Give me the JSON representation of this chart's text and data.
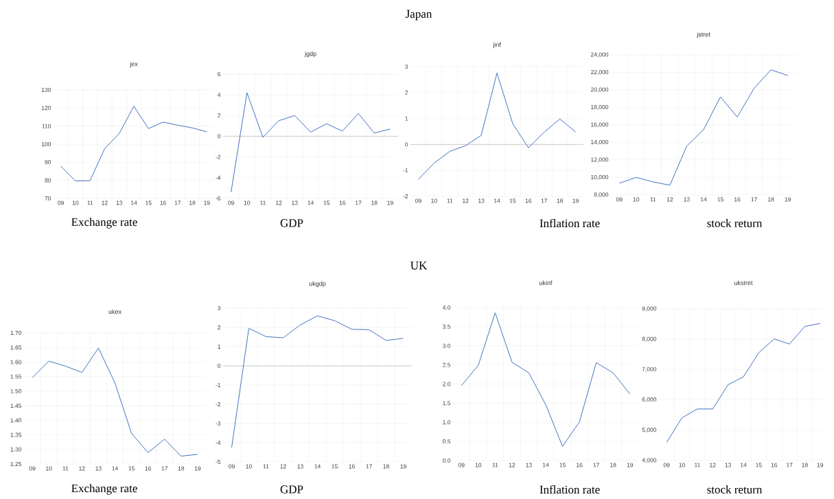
{
  "chart_data": [
    {
      "type": "line",
      "title": "jex",
      "xlabel": "Exchange rate",
      "annotations": [
        "Japan"
      ],
      "categories": [
        "09",
        "10",
        "11",
        "12",
        "13",
        "14",
        "15",
        "16",
        "17",
        "18",
        "19"
      ],
      "color": "#4472c4",
      "grid": true,
      "values": [
        87.8,
        79.6,
        79.8,
        97.5,
        105.9,
        121.0,
        108.6,
        112.2,
        110.5,
        109.0,
        106.8
      ],
      "ylim": [
        70,
        130
      ],
      "yticks": [
        70,
        80,
        90,
        100,
        110,
        120,
        130
      ]
    },
    {
      "type": "line",
      "title": "jgdp",
      "xlabel": "GDP",
      "categories": [
        "09",
        "10",
        "11",
        "12",
        "13",
        "14",
        "15",
        "16",
        "17",
        "18",
        "19"
      ],
      "color": "#4472c4",
      "grid": true,
      "values": [
        -5.4,
        4.2,
        -0.1,
        1.5,
        2.0,
        0.4,
        1.2,
        0.5,
        2.2,
        0.3,
        0.7
      ],
      "ylim": [
        -6,
        6
      ],
      "yticks": [
        -6,
        -4,
        -2,
        0,
        2,
        4,
        6
      ],
      "ref_lines": [
        {
          "axis": "y",
          "value": 0,
          "color": "#bfbfbf"
        }
      ]
    },
    {
      "type": "line",
      "title": "jinf",
      "xlabel": "Inflation rate",
      "categories": [
        "09",
        "10",
        "11",
        "12",
        "13",
        "14",
        "15",
        "16",
        "17",
        "18",
        "19"
      ],
      "color": "#4472c4",
      "grid": true,
      "values": [
        -1.35,
        -0.72,
        -0.27,
        -0.05,
        0.35,
        2.75,
        0.8,
        -0.13,
        0.47,
        0.98,
        0.48
      ],
      "ylim": [
        -2,
        3
      ],
      "yticks": [
        -2,
        -1,
        0,
        1,
        2,
        3
      ],
      "ref_lines": [
        {
          "axis": "y",
          "value": 0,
          "color": "#bfbfbf"
        }
      ]
    },
    {
      "type": "line",
      "title": "jstret",
      "xlabel": "stock return",
      "categories": [
        "09",
        "10",
        "11",
        "12",
        "13",
        "14",
        "15",
        "16",
        "17",
        "18",
        "19"
      ],
      "color": "#4472c4",
      "grid": true,
      "values": [
        9340,
        10000,
        9490,
        9110,
        13580,
        15460,
        19200,
        16900,
        20200,
        22300,
        21650
      ],
      "ylim": [
        8000,
        24000
      ],
      "yticks": [
        {
          "value": 8000,
          "label": "8,000"
        },
        {
          "value": 10000,
          "label": "10,000"
        },
        {
          "value": 12000,
          "label": "12,000"
        },
        {
          "value": 14000,
          "label": "14,000"
        },
        {
          "value": 16000,
          "label": "16,000"
        },
        {
          "value": 18000,
          "label": "18,000"
        },
        {
          "value": 20000,
          "label": "20,000"
        },
        {
          "value": 22000,
          "label": "22,000"
        },
        {
          "value": 24000,
          "label": "24,000"
        }
      ]
    },
    {
      "type": "line",
      "title": "ukex",
      "xlabel": "Exchange rate",
      "annotations": [
        "UK"
      ],
      "categories": [
        "09",
        "10",
        "11",
        "12",
        "13",
        "14",
        "15",
        "16",
        "17",
        "18",
        "19"
      ],
      "color": "#4472c4",
      "grid": true,
      "values": [
        1.546,
        1.603,
        1.586,
        1.564,
        1.648,
        1.528,
        1.355,
        1.289,
        1.335,
        1.277,
        1.283
      ],
      "ylim": [
        1.25,
        1.7
      ],
      "yticks": [
        {
          "value": 1.25,
          "label": "1.25"
        },
        {
          "value": 1.3,
          "label": "1.30"
        },
        {
          "value": 1.35,
          "label": "1.35"
        },
        {
          "value": 1.4,
          "label": "1.40"
        },
        {
          "value": 1.45,
          "label": "1.45"
        },
        {
          "value": 1.5,
          "label": "1.50"
        },
        {
          "value": 1.55,
          "label": "1.55"
        },
        {
          "value": 1.6,
          "label": "1.60"
        },
        {
          "value": 1.65,
          "label": "1.65"
        },
        {
          "value": 1.7,
          "label": "1.70"
        }
      ]
    },
    {
      "type": "line",
      "title": "ukgdp",
      "xlabel": "GDP",
      "categories": [
        "09",
        "10",
        "11",
        "12",
        "13",
        "14",
        "15",
        "16",
        "17",
        "18",
        "19"
      ],
      "color": "#4472c4",
      "grid": true,
      "values": [
        -4.25,
        1.95,
        1.52,
        1.46,
        2.13,
        2.6,
        2.35,
        1.9,
        1.88,
        1.32,
        1.43
      ],
      "ylim": [
        -5,
        3
      ],
      "yticks": [
        -5,
        -4,
        -3,
        -2,
        -1,
        0,
        1,
        2,
        3
      ],
      "ref_lines": [
        {
          "axis": "y",
          "value": 0,
          "color": "#bfbfbf"
        }
      ]
    },
    {
      "type": "line",
      "title": "ukinf",
      "xlabel": "Inflation rate",
      "categories": [
        "09",
        "10",
        "11",
        "12",
        "13",
        "14",
        "15",
        "16",
        "17",
        "18",
        "19"
      ],
      "color": "#4472c4",
      "grid": true,
      "values": [
        1.96,
        2.49,
        3.86,
        2.57,
        2.29,
        1.46,
        0.37,
        1.01,
        2.56,
        2.29,
        1.74
      ],
      "ylim": [
        0,
        4
      ],
      "yticks": [
        {
          "value": 0,
          "label": "0.0"
        },
        {
          "value": 0.5,
          "label": "0.5"
        },
        {
          "value": 1,
          "label": "1.0"
        },
        {
          "value": 1.5,
          "label": "1.5"
        },
        {
          "value": 2,
          "label": "2.0"
        },
        {
          "value": 2.5,
          "label": "2.5"
        },
        {
          "value": 3,
          "label": "3.0"
        },
        {
          "value": 3.5,
          "label": "3.5"
        },
        {
          "value": 4,
          "label": "4.0"
        }
      ]
    },
    {
      "type": "line",
      "title": "ukstret",
      "xlabel": "stock return",
      "categories": [
        "09",
        "10",
        "11",
        "12",
        "13",
        "14",
        "15",
        "16",
        "17",
        "18",
        "19"
      ],
      "color": "#4472c4",
      "grid": true,
      "values": [
        4600,
        5410,
        5700,
        5700,
        6500,
        6760,
        7550,
        8010,
        7840,
        8420,
        8520
      ],
      "ylim": [
        4000,
        9000
      ],
      "yticks": [
        {
          "value": 4000,
          "label": "4,000"
        },
        {
          "value": 5000,
          "label": "5,000"
        },
        {
          "value": 6000,
          "label": "6,000"
        },
        {
          "value": 7000,
          "label": "7,000"
        },
        {
          "value": 8000,
          "label": "8,000"
        },
        {
          "value": 9000,
          "label": "9,000"
        }
      ]
    }
  ]
}
